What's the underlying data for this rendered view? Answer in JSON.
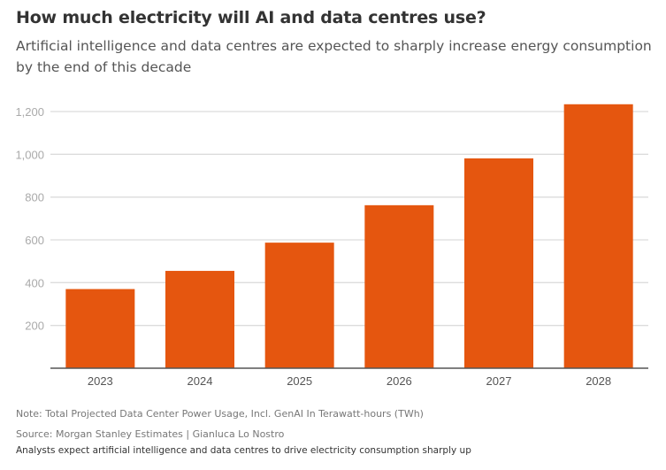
{
  "chart_data": {
    "type": "bar",
    "title": "How much electricity will AI and data centres use?",
    "subtitle": "Artificial intelligence and data centres are expected to sharply increase energy consumption by the end of this decade",
    "categories": [
      "2023",
      "2024",
      "2025",
      "2026",
      "2027",
      "2028"
    ],
    "values": [
      370,
      455,
      587,
      762,
      981,
      1234
    ],
    "xlabel": "",
    "ylabel": "",
    "ylim": [
      0,
      1250
    ],
    "yticks": [
      200,
      400,
      600,
      800,
      1000,
      1200
    ],
    "ytick_labels": [
      "200",
      "400",
      "600",
      "800",
      "1,000",
      "1,200"
    ],
    "grid": true,
    "bar_color": "#e5560f"
  },
  "footer": {
    "note": "Note: Total Projected Data Center Power Usage, Incl. GenAI In Terawatt-hours (TWh)",
    "source": "Source: Morgan Stanley Estimates | Gianluca Lo Nostro",
    "caption": "Analysts expect artificial intelligence and data centres to drive electricity consumption sharply up"
  }
}
